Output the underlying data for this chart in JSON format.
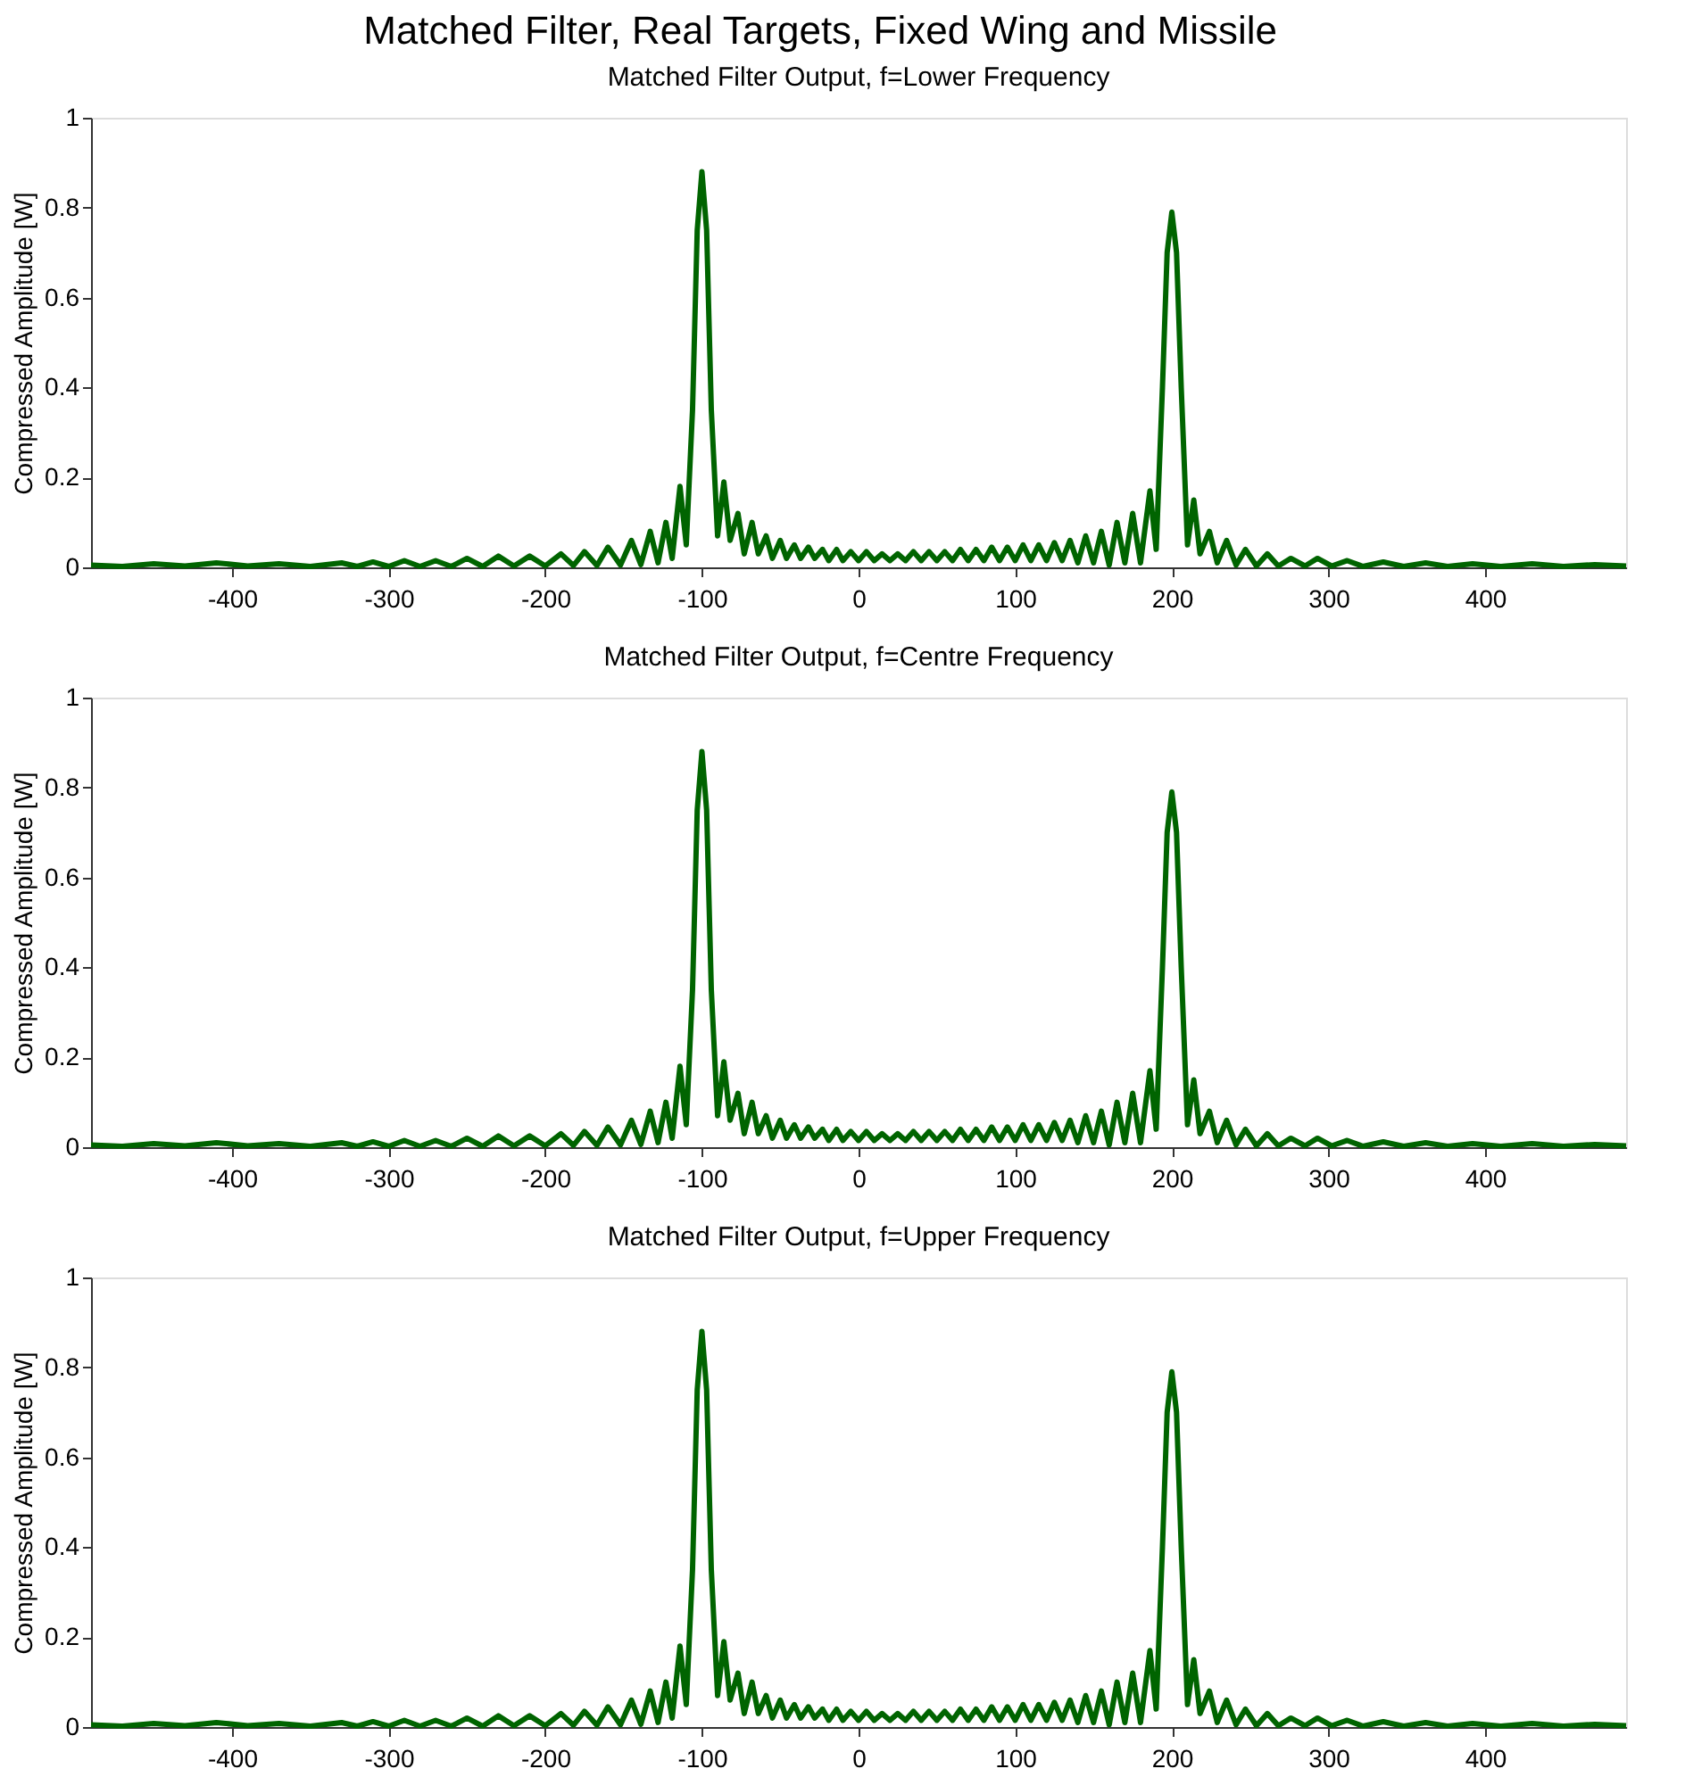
{
  "chart_data": [
    {
      "type": "line",
      "title": "Matched Filter, Real Targets, Fixed Wing and Missile",
      "subtitle": "Matched Filter Output, f=Lower Frequency",
      "ylabel": "Compressed Amplitude [W]",
      "xlim": [
        -490,
        490
      ],
      "xticks": [
        -400,
        -300,
        -200,
        -100,
        0,
        100,
        200,
        300,
        400
      ],
      "ylim": [
        0,
        1
      ],
      "yticks": [
        0,
        0.2,
        0.4,
        0.6,
        0.8,
        1
      ],
      "grid": false,
      "marker": "none",
      "line_style": "solid",
      "x": [
        -490,
        -470,
        -450,
        -430,
        -410,
        -390,
        -370,
        -350,
        -330,
        -320,
        -310,
        -300,
        -290,
        -280,
        -270,
        -260,
        -250,
        -240,
        -230,
        -220,
        -210,
        -200,
        -190,
        -182,
        -175,
        -167,
        -160,
        -152,
        -145,
        -139,
        -133,
        -128,
        -123,
        -119,
        -114,
        -110,
        -106,
        -103,
        -100,
        -97,
        -94,
        -90,
        -86,
        -82,
        -77,
        -73,
        -68,
        -64,
        -59,
        -55,
        -50,
        -46,
        -41,
        -37,
        -32,
        -28,
        -23,
        -19,
        -14,
        -10,
        -5,
        0,
        5,
        10,
        15,
        20,
        25,
        30,
        35,
        40,
        45,
        50,
        55,
        60,
        65,
        70,
        75,
        80,
        85,
        90,
        95,
        100,
        105,
        110,
        115,
        120,
        125,
        130,
        135,
        140,
        145,
        150,
        155,
        160,
        165,
        170,
        175,
        180,
        186,
        190,
        194,
        197,
        200,
        203,
        206,
        210,
        214,
        218,
        224,
        229,
        235,
        241,
        247,
        254,
        261,
        268,
        276,
        285,
        293,
        302,
        312,
        322,
        335,
        348,
        362,
        376,
        392,
        410,
        430,
        450,
        470,
        490
      ],
      "series": [
        {
          "color": "#006400",
          "values": [
            0.005,
            0.002,
            0.008,
            0.003,
            0.01,
            0.003,
            0.008,
            0.002,
            0.01,
            0.002,
            0.012,
            0.002,
            0.015,
            0.002,
            0.015,
            0.002,
            0.02,
            0.002,
            0.025,
            0.003,
            0.025,
            0.003,
            0.03,
            0.004,
            0.035,
            0.004,
            0.045,
            0.005,
            0.06,
            0.006,
            0.08,
            0.01,
            0.1,
            0.02,
            0.18,
            0.05,
            0.35,
            0.75,
            0.88,
            0.75,
            0.35,
            0.07,
            0.19,
            0.06,
            0.12,
            0.03,
            0.1,
            0.03,
            0.07,
            0.02,
            0.06,
            0.02,
            0.05,
            0.02,
            0.045,
            0.02,
            0.04,
            0.015,
            0.04,
            0.015,
            0.035,
            0.015,
            0.035,
            0.015,
            0.03,
            0.015,
            0.03,
            0.015,
            0.035,
            0.015,
            0.035,
            0.015,
            0.035,
            0.015,
            0.04,
            0.015,
            0.04,
            0.015,
            0.045,
            0.015,
            0.045,
            0.015,
            0.05,
            0.015,
            0.05,
            0.015,
            0.055,
            0.015,
            0.06,
            0.01,
            0.07,
            0.01,
            0.08,
            0.005,
            0.1,
            0.01,
            0.12,
            0.01,
            0.17,
            0.04,
            0.4,
            0.7,
            0.79,
            0.7,
            0.4,
            0.05,
            0.15,
            0.03,
            0.08,
            0.01,
            0.06,
            0.005,
            0.04,
            0.003,
            0.03,
            0.003,
            0.02,
            0.003,
            0.02,
            0.003,
            0.015,
            0.002,
            0.012,
            0.002,
            0.01,
            0.002,
            0.008,
            0.002,
            0.008,
            0.002,
            0.006,
            0.003
          ]
        }
      ]
    },
    {
      "type": "line",
      "title": "Matched Filter Output, f=Centre Frequency",
      "ylabel": "Compressed Amplitude [W]",
      "xlim": [
        -490,
        490
      ],
      "xticks": [
        -400,
        -300,
        -200,
        -100,
        0,
        100,
        200,
        300,
        400
      ],
      "ylim": [
        0,
        1
      ],
      "yticks": [
        0,
        0.2,
        0.4,
        0.6,
        0.8,
        1
      ],
      "grid": false,
      "marker": "none",
      "line_style": "solid",
      "x": [
        -490,
        -470,
        -450,
        -430,
        -410,
        -390,
        -370,
        -350,
        -330,
        -320,
        -310,
        -300,
        -290,
        -280,
        -270,
        -260,
        -250,
        -240,
        -230,
        -220,
        -210,
        -200,
        -190,
        -182,
        -175,
        -167,
        -160,
        -152,
        -145,
        -139,
        -133,
        -128,
        -123,
        -119,
        -114,
        -110,
        -106,
        -103,
        -100,
        -97,
        -94,
        -90,
        -86,
        -82,
        -77,
        -73,
        -68,
        -64,
        -59,
        -55,
        -50,
        -46,
        -41,
        -37,
        -32,
        -28,
        -23,
        -19,
        -14,
        -10,
        -5,
        0,
        5,
        10,
        15,
        20,
        25,
        30,
        35,
        40,
        45,
        50,
        55,
        60,
        65,
        70,
        75,
        80,
        85,
        90,
        95,
        100,
        105,
        110,
        115,
        120,
        125,
        130,
        135,
        140,
        145,
        150,
        155,
        160,
        165,
        170,
        175,
        180,
        186,
        190,
        194,
        197,
        200,
        203,
        206,
        210,
        214,
        218,
        224,
        229,
        235,
        241,
        247,
        254,
        261,
        268,
        276,
        285,
        293,
        302,
        312,
        322,
        335,
        348,
        362,
        376,
        392,
        410,
        430,
        450,
        470,
        490
      ],
      "series": [
        {
          "color": "#006400",
          "values": [
            0.005,
            0.002,
            0.008,
            0.003,
            0.01,
            0.003,
            0.008,
            0.002,
            0.01,
            0.002,
            0.012,
            0.002,
            0.015,
            0.002,
            0.015,
            0.002,
            0.02,
            0.002,
            0.025,
            0.003,
            0.025,
            0.003,
            0.03,
            0.004,
            0.035,
            0.004,
            0.045,
            0.005,
            0.06,
            0.006,
            0.08,
            0.01,
            0.1,
            0.02,
            0.18,
            0.05,
            0.35,
            0.75,
            0.88,
            0.75,
            0.35,
            0.07,
            0.19,
            0.06,
            0.12,
            0.03,
            0.1,
            0.03,
            0.07,
            0.02,
            0.06,
            0.02,
            0.05,
            0.02,
            0.045,
            0.02,
            0.04,
            0.015,
            0.04,
            0.015,
            0.035,
            0.015,
            0.035,
            0.015,
            0.03,
            0.015,
            0.03,
            0.015,
            0.035,
            0.015,
            0.035,
            0.015,
            0.035,
            0.015,
            0.04,
            0.015,
            0.04,
            0.015,
            0.045,
            0.015,
            0.045,
            0.015,
            0.05,
            0.015,
            0.05,
            0.015,
            0.055,
            0.015,
            0.06,
            0.01,
            0.07,
            0.01,
            0.08,
            0.005,
            0.1,
            0.01,
            0.12,
            0.01,
            0.17,
            0.04,
            0.4,
            0.7,
            0.79,
            0.7,
            0.4,
            0.05,
            0.15,
            0.03,
            0.08,
            0.01,
            0.06,
            0.005,
            0.04,
            0.003,
            0.03,
            0.003,
            0.02,
            0.003,
            0.02,
            0.003,
            0.015,
            0.002,
            0.012,
            0.002,
            0.01,
            0.002,
            0.008,
            0.002,
            0.008,
            0.002,
            0.006,
            0.003
          ]
        }
      ]
    },
    {
      "type": "line",
      "title": "Matched Filter Output, f=Upper Frequency",
      "ylabel": "Compressed Amplitude [W]",
      "xlim": [
        -490,
        490
      ],
      "xticks": [
        -400,
        -300,
        -200,
        -100,
        0,
        100,
        200,
        300,
        400
      ],
      "ylim": [
        0,
        1
      ],
      "yticks": [
        0,
        0.2,
        0.4,
        0.6,
        0.8,
        1
      ],
      "grid": false,
      "marker": "none",
      "line_style": "solid",
      "x": [
        -490,
        -470,
        -450,
        -430,
        -410,
        -390,
        -370,
        -350,
        -330,
        -320,
        -310,
        -300,
        -290,
        -280,
        -270,
        -260,
        -250,
        -240,
        -230,
        -220,
        -210,
        -200,
        -190,
        -182,
        -175,
        -167,
        -160,
        -152,
        -145,
        -139,
        -133,
        -128,
        -123,
        -119,
        -114,
        -110,
        -106,
        -103,
        -100,
        -97,
        -94,
        -90,
        -86,
        -82,
        -77,
        -73,
        -68,
        -64,
        -59,
        -55,
        -50,
        -46,
        -41,
        -37,
        -32,
        -28,
        -23,
        -19,
        -14,
        -10,
        -5,
        0,
        5,
        10,
        15,
        20,
        25,
        30,
        35,
        40,
        45,
        50,
        55,
        60,
        65,
        70,
        75,
        80,
        85,
        90,
        95,
        100,
        105,
        110,
        115,
        120,
        125,
        130,
        135,
        140,
        145,
        150,
        155,
        160,
        165,
        170,
        175,
        180,
        186,
        190,
        194,
        197,
        200,
        203,
        206,
        210,
        214,
        218,
        224,
        229,
        235,
        241,
        247,
        254,
        261,
        268,
        276,
        285,
        293,
        302,
        312,
        322,
        335,
        348,
        362,
        376,
        392,
        410,
        430,
        450,
        470,
        490
      ],
      "series": [
        {
          "color": "#006400",
          "values": [
            0.005,
            0.002,
            0.008,
            0.003,
            0.01,
            0.003,
            0.008,
            0.002,
            0.01,
            0.002,
            0.012,
            0.002,
            0.015,
            0.002,
            0.015,
            0.002,
            0.02,
            0.002,
            0.025,
            0.003,
            0.025,
            0.003,
            0.03,
            0.004,
            0.035,
            0.004,
            0.045,
            0.005,
            0.06,
            0.006,
            0.08,
            0.01,
            0.1,
            0.02,
            0.18,
            0.05,
            0.35,
            0.75,
            0.88,
            0.75,
            0.35,
            0.07,
            0.19,
            0.06,
            0.12,
            0.03,
            0.1,
            0.03,
            0.07,
            0.02,
            0.06,
            0.02,
            0.05,
            0.02,
            0.045,
            0.02,
            0.04,
            0.015,
            0.04,
            0.015,
            0.035,
            0.015,
            0.035,
            0.015,
            0.03,
            0.015,
            0.03,
            0.015,
            0.035,
            0.015,
            0.035,
            0.015,
            0.035,
            0.015,
            0.04,
            0.015,
            0.04,
            0.015,
            0.045,
            0.015,
            0.045,
            0.015,
            0.05,
            0.015,
            0.05,
            0.015,
            0.055,
            0.015,
            0.06,
            0.01,
            0.07,
            0.01,
            0.08,
            0.005,
            0.1,
            0.01,
            0.12,
            0.01,
            0.17,
            0.04,
            0.4,
            0.7,
            0.79,
            0.7,
            0.4,
            0.05,
            0.15,
            0.03,
            0.08,
            0.01,
            0.06,
            0.005,
            0.04,
            0.003,
            0.03,
            0.003,
            0.02,
            0.003,
            0.02,
            0.003,
            0.015,
            0.002,
            0.012,
            0.002,
            0.01,
            0.002,
            0.008,
            0.002,
            0.008,
            0.002,
            0.006,
            0.003
          ]
        }
      ]
    }
  ]
}
